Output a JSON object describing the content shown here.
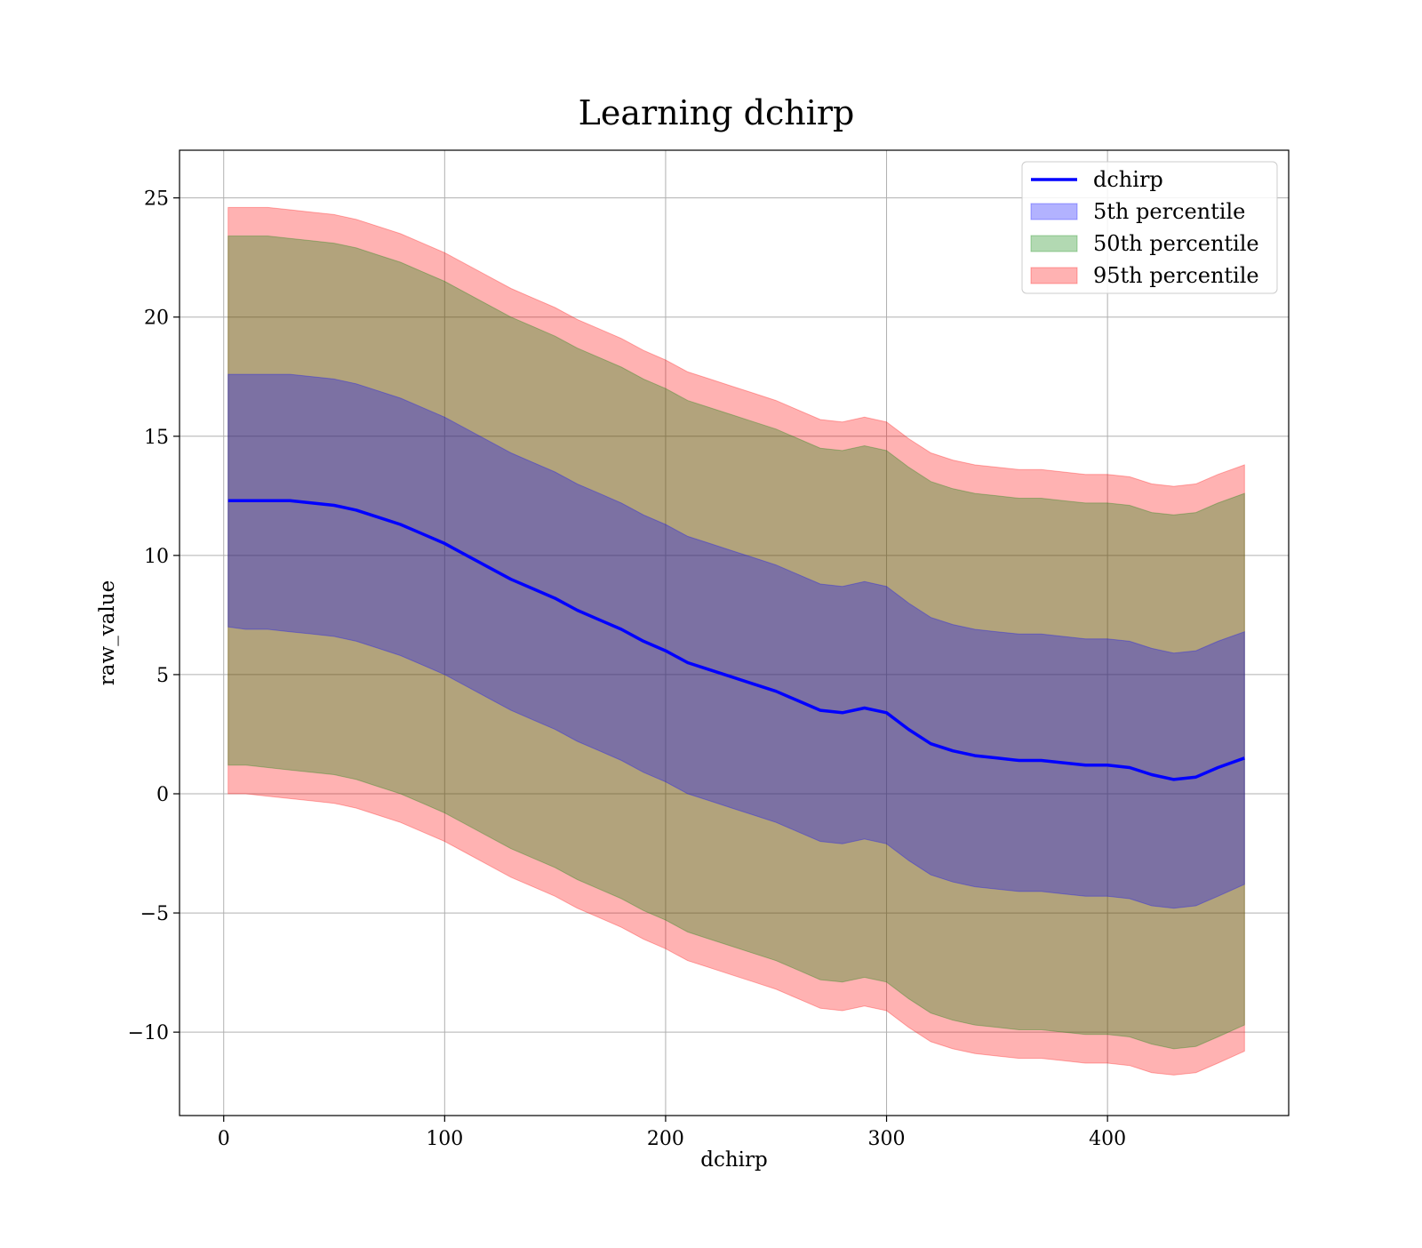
{
  "chart_data": {
    "type": "line",
    "title": "Learning dchirp",
    "xlabel": "dchirp",
    "ylabel": "raw_value",
    "xlim": [
      -20,
      482
    ],
    "ylim": [
      -13.5,
      27
    ],
    "x_ticks": [
      0,
      100,
      200,
      300,
      400
    ],
    "y_ticks": [
      -10,
      -5,
      0,
      5,
      10,
      15,
      20,
      25
    ],
    "x_tick_labels": [
      "0",
      "100",
      "200",
      "300",
      "400"
    ],
    "y_tick_labels": [
      "−10",
      "−5",
      "0",
      "5",
      "10",
      "15",
      "20",
      "25"
    ],
    "grid": true,
    "legend_position": "top-right",
    "x": [
      2,
      10,
      20,
      30,
      40,
      50,
      60,
      70,
      80,
      90,
      100,
      110,
      120,
      130,
      140,
      150,
      160,
      170,
      180,
      190,
      200,
      210,
      220,
      230,
      240,
      250,
      260,
      270,
      280,
      290,
      300,
      310,
      320,
      330,
      340,
      350,
      360,
      370,
      380,
      390,
      400,
      410,
      420,
      430,
      440,
      450,
      462
    ],
    "series": [
      {
        "name": "dchirp",
        "kind": "line",
        "color": "#0000ff",
        "values": [
          12.3,
          12.3,
          12.3,
          12.3,
          12.2,
          12.1,
          11.9,
          11.6,
          11.3,
          10.9,
          10.5,
          10.0,
          9.5,
          9.0,
          8.6,
          8.2,
          7.7,
          7.3,
          6.9,
          6.4,
          6.0,
          5.5,
          5.2,
          4.9,
          4.6,
          4.3,
          3.9,
          3.5,
          3.4,
          3.6,
          3.4,
          2.7,
          2.1,
          1.8,
          1.6,
          1.5,
          1.4,
          1.4,
          1.3,
          1.2,
          1.2,
          1.1,
          0.8,
          0.6,
          0.7,
          1.1,
          1.5
        ]
      },
      {
        "name": "5th percentile",
        "kind": "band",
        "color": "#0000ff",
        "lower": [
          7.0,
          6.9,
          6.9,
          6.8,
          6.7,
          6.6,
          6.4,
          6.1,
          5.8,
          5.4,
          5.0,
          4.5,
          4.0,
          3.5,
          3.1,
          2.7,
          2.2,
          1.8,
          1.4,
          0.9,
          0.5,
          0.0,
          -0.3,
          -0.6,
          -0.9,
          -1.2,
          -1.6,
          -2.0,
          -2.1,
          -1.9,
          -2.1,
          -2.8,
          -3.4,
          -3.7,
          -3.9,
          -4.0,
          -4.1,
          -4.1,
          -4.2,
          -4.3,
          -4.3,
          -4.4,
          -4.7,
          -4.8,
          -4.7,
          -4.3,
          -3.8
        ],
        "upper": [
          17.6,
          17.6,
          17.6,
          17.6,
          17.5,
          17.4,
          17.2,
          16.9,
          16.6,
          16.2,
          15.8,
          15.3,
          14.8,
          14.3,
          13.9,
          13.5,
          13.0,
          12.6,
          12.2,
          11.7,
          11.3,
          10.8,
          10.5,
          10.2,
          9.9,
          9.6,
          9.2,
          8.8,
          8.7,
          8.9,
          8.7,
          8.0,
          7.4,
          7.1,
          6.9,
          6.8,
          6.7,
          6.7,
          6.6,
          6.5,
          6.5,
          6.4,
          6.1,
          5.9,
          6.0,
          6.4,
          6.8
        ]
      },
      {
        "name": "50th percentile",
        "kind": "band",
        "color": "#008000",
        "lower": [
          1.2,
          1.2,
          1.1,
          1.0,
          0.9,
          0.8,
          0.6,
          0.3,
          0.0,
          -0.4,
          -0.8,
          -1.3,
          -1.8,
          -2.3,
          -2.7,
          -3.1,
          -3.6,
          -4.0,
          -4.4,
          -4.9,
          -5.3,
          -5.8,
          -6.1,
          -6.4,
          -6.7,
          -7.0,
          -7.4,
          -7.8,
          -7.9,
          -7.7,
          -7.9,
          -8.6,
          -9.2,
          -9.5,
          -9.7,
          -9.8,
          -9.9,
          -9.9,
          -10.0,
          -10.1,
          -10.1,
          -10.2,
          -10.5,
          -10.7,
          -10.6,
          -10.2,
          -9.7
        ],
        "upper": [
          23.4,
          23.4,
          23.4,
          23.3,
          23.2,
          23.1,
          22.9,
          22.6,
          22.3,
          21.9,
          21.5,
          21.0,
          20.5,
          20.0,
          19.6,
          19.2,
          18.7,
          18.3,
          17.9,
          17.4,
          17.0,
          16.5,
          16.2,
          15.9,
          15.6,
          15.3,
          14.9,
          14.5,
          14.4,
          14.6,
          14.4,
          13.7,
          13.1,
          12.8,
          12.6,
          12.5,
          12.4,
          12.4,
          12.3,
          12.2,
          12.2,
          12.1,
          11.8,
          11.7,
          11.8,
          12.2,
          12.6
        ]
      },
      {
        "name": "95th percentile",
        "kind": "band",
        "color": "#ff0000",
        "lower": [
          0.0,
          0.0,
          -0.1,
          -0.2,
          -0.3,
          -0.4,
          -0.6,
          -0.9,
          -1.2,
          -1.6,
          -2.0,
          -2.5,
          -3.0,
          -3.5,
          -3.9,
          -4.3,
          -4.8,
          -5.2,
          -5.6,
          -6.1,
          -6.5,
          -7.0,
          -7.3,
          -7.6,
          -7.9,
          -8.2,
          -8.6,
          -9.0,
          -9.1,
          -8.9,
          -9.1,
          -9.8,
          -10.4,
          -10.7,
          -10.9,
          -11.0,
          -11.1,
          -11.1,
          -11.2,
          -11.3,
          -11.3,
          -11.4,
          -11.7,
          -11.8,
          -11.7,
          -11.3,
          -10.8
        ],
        "upper": [
          24.6,
          24.6,
          24.6,
          24.5,
          24.4,
          24.3,
          24.1,
          23.8,
          23.5,
          23.1,
          22.7,
          22.2,
          21.7,
          21.2,
          20.8,
          20.4,
          19.9,
          19.5,
          19.1,
          18.6,
          18.2,
          17.7,
          17.4,
          17.1,
          16.8,
          16.5,
          16.1,
          15.7,
          15.6,
          15.8,
          15.6,
          14.9,
          14.3,
          14.0,
          13.8,
          13.7,
          13.6,
          13.6,
          13.5,
          13.4,
          13.4,
          13.3,
          13.0,
          12.9,
          13.0,
          13.4,
          13.8
        ]
      }
    ]
  }
}
